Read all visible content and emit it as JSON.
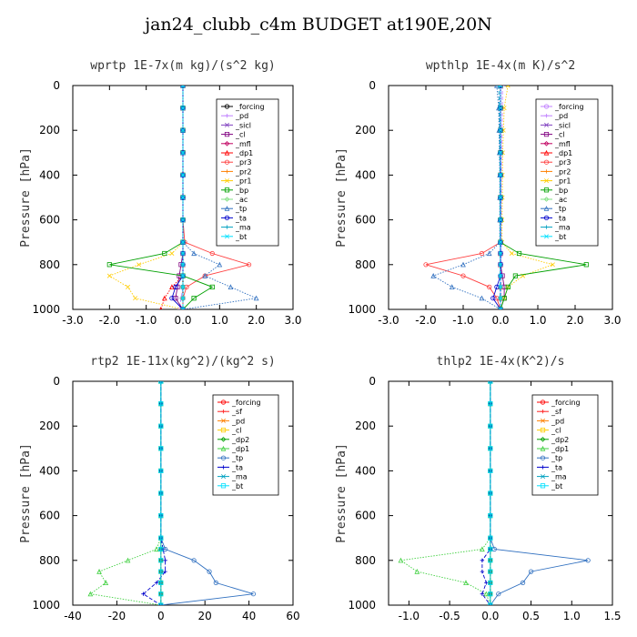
{
  "title": "jan24_clubb_c4m  BUDGET at190E,20N",
  "chart_data": [
    {
      "type": "line",
      "title": "wprtp  1E-7x(m kg)/(s^2 kg)",
      "ylabel": "Pressure [hPa]",
      "xlim": [
        -3.0,
        3.0
      ],
      "ylim": [
        1000,
        0
      ],
      "xticks": [
        "-3.0",
        "-2.0",
        "-1.0",
        "0.0",
        "1.0",
        "2.0",
        "3.0"
      ],
      "yticks": [
        "0",
        "200",
        "400",
        "600",
        "800",
        "1000"
      ],
      "legend_position": "top-right",
      "y": [
        0,
        100,
        200,
        300,
        400,
        500,
        600,
        700,
        750,
        800,
        850,
        900,
        950,
        1000
      ],
      "series": [
        {
          "name": "_forcing",
          "color": "#000000",
          "values": [
            0,
            0,
            0,
            0,
            0,
            0,
            0,
            0,
            0,
            0,
            0,
            0,
            0,
            0
          ]
        },
        {
          "name": "_pd",
          "color": "#c080ff",
          "values": [
            0,
            0,
            0,
            0,
            0,
            0,
            0,
            0,
            0,
            0,
            0,
            0,
            -0.05,
            -0.1
          ]
        },
        {
          "name": "_sicl",
          "color": "#8040c0",
          "values": [
            0,
            0,
            0,
            0,
            0,
            0,
            0,
            0,
            0,
            0,
            0,
            0,
            0,
            0
          ]
        },
        {
          "name": "_cl",
          "color": "#800080",
          "values": [
            0,
            0,
            0,
            0,
            0,
            0,
            0,
            0,
            0,
            -0.05,
            -0.1,
            -0.15,
            -0.2,
            0
          ]
        },
        {
          "name": "_mfl",
          "color": "#c00060",
          "values": [
            0,
            0,
            0,
            0,
            0,
            0,
            0,
            0,
            0,
            0,
            0,
            0,
            0,
            0
          ]
        },
        {
          "name": "_dp1",
          "color": "#ff0000",
          "values": [
            0,
            0,
            0,
            0,
            0,
            0,
            0,
            0,
            0,
            0,
            0,
            -0.3,
            -0.5,
            -0.6
          ]
        },
        {
          "name": "_pr3",
          "color": "#ff4040",
          "values": [
            0,
            0,
            0,
            0,
            0,
            0,
            0,
            0.05,
            0.8,
            1.8,
            0.6,
            0.1,
            0,
            0
          ]
        },
        {
          "name": "_pr2",
          "color": "#ff8000",
          "values": [
            0,
            0,
            0,
            0,
            0,
            0,
            0,
            0,
            0,
            0,
            0,
            0,
            0,
            0
          ]
        },
        {
          "name": "_pr1",
          "color": "#ffcc00",
          "values": [
            0,
            0,
            0,
            0,
            0,
            0,
            0,
            0,
            -0.3,
            -1.2,
            -2.0,
            -1.5,
            -1.3,
            0
          ]
        },
        {
          "name": "_bp",
          "color": "#00a000",
          "values": [
            0,
            0,
            0,
            0,
            0,
            0,
            0,
            0,
            -0.5,
            -2.0,
            0,
            0.8,
            0.3,
            0
          ]
        },
        {
          "name": "_ac",
          "color": "#80e080",
          "values": [
            0,
            0,
            0,
            0,
            0,
            0,
            0,
            0,
            0,
            0,
            0,
            0,
            0,
            0
          ]
        },
        {
          "name": "_tp",
          "color": "#3070c0",
          "values": [
            0,
            0,
            0,
            0,
            0,
            0,
            0,
            0,
            0.3,
            1.0,
            0.6,
            1.3,
            2.0,
            0
          ]
        },
        {
          "name": "_ta",
          "color": "#0000cc",
          "values": [
            0,
            0,
            0,
            0,
            0,
            0,
            0,
            0,
            0,
            0,
            0,
            -0.2,
            -0.3,
            0
          ]
        },
        {
          "name": "_ma",
          "color": "#00a0c0",
          "values": [
            0,
            0,
            0,
            0,
            0,
            0,
            0,
            0,
            0,
            0,
            0,
            0,
            0,
            0
          ]
        },
        {
          "name": "_bt",
          "color": "#00e0ff",
          "values": [
            0,
            0,
            0,
            0,
            0,
            0,
            0,
            0,
            0,
            0,
            0,
            0,
            0,
            0
          ]
        }
      ]
    },
    {
      "type": "line",
      "title": "wpthlp  1E-4x(m K)/s^2",
      "ylabel": "Pressure [hPa]",
      "xlim": [
        -3.0,
        3.0
      ],
      "ylim": [
        1000,
        0
      ],
      "xticks": [
        "-3.0",
        "-2.0",
        "-1.0",
        "0.0",
        "1.0",
        "2.0",
        "3.0"
      ],
      "yticks": [
        "0",
        "200",
        "400",
        "600",
        "800",
        "1000"
      ],
      "legend_position": "top-right",
      "y": [
        0,
        100,
        200,
        300,
        400,
        500,
        600,
        700,
        750,
        800,
        850,
        900,
        950,
        1000
      ],
      "series": [
        {
          "name": "_forcing",
          "color": "#c080ff",
          "values": [
            0,
            0,
            0,
            0,
            0,
            0,
            0,
            0,
            0,
            0,
            0,
            0,
            0,
            0
          ]
        },
        {
          "name": "_pd",
          "color": "#c080ff",
          "values": [
            0.05,
            0.05,
            0.04,
            0.03,
            0.02,
            0.02,
            0.02,
            0.02,
            0.02,
            0.02,
            0.02,
            0.02,
            0.02,
            0
          ]
        },
        {
          "name": "_sicl",
          "color": "#8040c0",
          "values": [
            0,
            0,
            0,
            0,
            0,
            0,
            0,
            0,
            0,
            0,
            0,
            0,
            0,
            0
          ]
        },
        {
          "name": "_cl",
          "color": "#800080",
          "values": [
            0,
            0,
            0,
            0,
            0,
            0,
            0,
            0,
            0,
            0,
            0.05,
            0.1,
            0.1,
            0
          ]
        },
        {
          "name": "_mfl",
          "color": "#c00060",
          "values": [
            0,
            0,
            0,
            0,
            0,
            0,
            0,
            0,
            0,
            0,
            0,
            0,
            0,
            0
          ]
        },
        {
          "name": "_dp1",
          "color": "#ff0000",
          "values": [
            0,
            0,
            0,
            0,
            0,
            0,
            0,
            0,
            0,
            0,
            0,
            0,
            0,
            0
          ]
        },
        {
          "name": "_pr3",
          "color": "#ff4040",
          "values": [
            0,
            0,
            0,
            0,
            0,
            0,
            0,
            0,
            -0.5,
            -2.0,
            -1.0,
            -0.3,
            -0.1,
            0
          ]
        },
        {
          "name": "_pr2",
          "color": "#ff8000",
          "values": [
            0,
            0,
            0,
            0,
            0,
            0,
            0,
            0,
            0,
            0,
            0,
            0,
            0,
            0
          ]
        },
        {
          "name": "_pr1",
          "color": "#ffcc00",
          "values": [
            0.2,
            0.1,
            0.08,
            0.06,
            0.05,
            0.05,
            0.04,
            0.04,
            0.3,
            1.4,
            0.6,
            0.2,
            0.1,
            0
          ]
        },
        {
          "name": "_bp",
          "color": "#00a000",
          "values": [
            0,
            0,
            0,
            0,
            0,
            0,
            0,
            0,
            0.5,
            2.3,
            0.4,
            0.2,
            0.1,
            0
          ]
        },
        {
          "name": "_ac",
          "color": "#80e080",
          "values": [
            0,
            0,
            0,
            0,
            0,
            0,
            0,
            0,
            0,
            0,
            0,
            0,
            0,
            0
          ]
        },
        {
          "name": "_tp",
          "color": "#3070c0",
          "values": [
            -0.1,
            -0.05,
            -0.04,
            -0.03,
            -0.02,
            -0.02,
            -0.02,
            -0.02,
            -0.3,
            -1.0,
            -1.8,
            -1.3,
            -0.5,
            0
          ]
        },
        {
          "name": "_ta",
          "color": "#0000cc",
          "values": [
            0,
            0,
            0,
            0,
            0,
            0,
            0,
            0,
            0,
            0,
            0,
            -0.1,
            -0.2,
            0
          ]
        },
        {
          "name": "_ma",
          "color": "#00a0c0",
          "values": [
            -0.05,
            -0.03,
            -0.02,
            -0.02,
            -0.01,
            -0.01,
            -0.01,
            -0.01,
            -0.01,
            -0.01,
            -0.01,
            -0.01,
            -0.01,
            0
          ]
        },
        {
          "name": "_bt",
          "color": "#00e0ff",
          "values": [
            0,
            0,
            0,
            0,
            0,
            0,
            0,
            0,
            0,
            0,
            0,
            0,
            0,
            0
          ]
        }
      ]
    },
    {
      "type": "line",
      "title": "rtp2  1E-11x(kg^2)/(kg^2 s)",
      "ylabel": "Pressure [hPa]",
      "xlim": [
        -40,
        60
      ],
      "ylim": [
        1000,
        0
      ],
      "xticks": [
        "-40",
        "-20",
        "0",
        "20",
        "40",
        "60"
      ],
      "yticks": [
        "0",
        "200",
        "400",
        "600",
        "800",
        "1000"
      ],
      "legend_position": "top-right",
      "y": [
        0,
        100,
        200,
        300,
        400,
        500,
        600,
        700,
        750,
        800,
        850,
        900,
        950,
        1000
      ],
      "series": [
        {
          "name": "_forcing",
          "color": "#ff0000",
          "values": [
            0,
            0,
            0,
            0,
            0,
            0,
            0,
            0,
            0,
            0,
            0,
            0,
            0,
            0
          ]
        },
        {
          "name": "_sf",
          "color": "#ff2020",
          "values": [
            0,
            0,
            0,
            0,
            0,
            0,
            0,
            0,
            0,
            0,
            0,
            0,
            0,
            0
          ]
        },
        {
          "name": "_pd",
          "color": "#ff8000",
          "values": [
            0,
            0,
            0,
            0,
            0,
            0,
            0,
            0,
            0,
            0,
            0,
            0,
            0,
            0
          ]
        },
        {
          "name": "_cl",
          "color": "#ffcc00",
          "values": [
            0,
            0,
            0,
            0,
            0,
            0,
            0,
            0,
            0,
            0,
            0,
            0,
            0,
            0
          ]
        },
        {
          "name": "_dp2",
          "color": "#00a000",
          "values": [
            0,
            0,
            0,
            0,
            0,
            0,
            0,
            0,
            0,
            0,
            0,
            0,
            0,
            0
          ]
        },
        {
          "name": "_dp1",
          "color": "#40d040",
          "values": [
            0,
            0,
            0,
            0,
            0,
            0,
            0,
            0,
            -2,
            -15,
            -28,
            -25,
            -32,
            0
          ]
        },
        {
          "name": "_tp",
          "color": "#3070c0",
          "values": [
            0,
            0,
            0,
            0,
            0,
            0,
            0,
            0,
            2,
            15,
            22,
            25,
            42,
            0
          ]
        },
        {
          "name": "_ta",
          "color": "#0000cc",
          "values": [
            0,
            0,
            0,
            0,
            0,
            0,
            0,
            0,
            1,
            2,
            2,
            -2,
            -8,
            0
          ]
        },
        {
          "name": "_ma",
          "color": "#00a0c0",
          "values": [
            0,
            0,
            0,
            0,
            0,
            0,
            0,
            0,
            0,
            0,
            0,
            0,
            0,
            0
          ]
        },
        {
          "name": "_bt",
          "color": "#00e0ff",
          "values": [
            0,
            0,
            0,
            0,
            0,
            0,
            0,
            0,
            0,
            0,
            0,
            0,
            0,
            0
          ]
        }
      ]
    },
    {
      "type": "line",
      "title": "thlp2  1E-4x(K^2)/s",
      "ylabel": "Pressure [hPa]",
      "xlim": [
        -1.25,
        1.5
      ],
      "ylim": [
        1000,
        0
      ],
      "xticks": [
        "-1.0",
        "-0.5",
        "0.0",
        "0.5",
        "1.0",
        "1.5"
      ],
      "yticks": [
        "0",
        "200",
        "400",
        "600",
        "800",
        "1000"
      ],
      "legend_position": "top-right",
      "y": [
        0,
        100,
        200,
        300,
        400,
        500,
        600,
        700,
        750,
        800,
        850,
        900,
        950,
        1000
      ],
      "series": [
        {
          "name": "_forcing",
          "color": "#ff0000",
          "values": [
            0,
            0,
            0,
            0,
            0,
            0,
            0,
            0,
            0,
            0,
            0,
            0,
            0,
            0
          ]
        },
        {
          "name": "_sf",
          "color": "#ff2020",
          "values": [
            0,
            0,
            0,
            0,
            0,
            0,
            0,
            0,
            0,
            0,
            0,
            0,
            0,
            0
          ]
        },
        {
          "name": "_pd",
          "color": "#ff8000",
          "values": [
            0,
            0,
            0,
            0,
            0,
            0,
            0,
            0,
            0,
            0,
            0,
            0,
            0,
            0
          ]
        },
        {
          "name": "_cl",
          "color": "#ffcc00",
          "values": [
            0,
            0,
            0,
            0,
            0,
            0,
            0,
            0,
            0,
            0,
            0,
            0,
            0,
            0
          ]
        },
        {
          "name": "_dp2",
          "color": "#00a000",
          "values": [
            0,
            0,
            0,
            0,
            0,
            0,
            0,
            0,
            0,
            0,
            0,
            0,
            0,
            0
          ]
        },
        {
          "name": "_dp1",
          "color": "#40d040",
          "values": [
            0,
            0,
            0,
            0,
            0,
            0,
            0,
            0,
            -0.1,
            -1.1,
            -0.9,
            -0.3,
            -0.05,
            0
          ]
        },
        {
          "name": "_tp",
          "color": "#3070c0",
          "values": [
            0,
            0,
            0,
            0,
            0,
            0,
            0,
            0,
            0.05,
            1.2,
            0.5,
            0.4,
            0.1,
            0
          ]
        },
        {
          "name": "_ta",
          "color": "#0000cc",
          "values": [
            0,
            0,
            0,
            0,
            0,
            0,
            0,
            0,
            0,
            -0.1,
            -0.1,
            -0.05,
            -0.1,
            0
          ]
        },
        {
          "name": "_ma",
          "color": "#00a0c0",
          "values": [
            0,
            0,
            0,
            0,
            0,
            0,
            0,
            0,
            0,
            0,
            0,
            0,
            0,
            0
          ]
        },
        {
          "name": "_bt",
          "color": "#00e0ff",
          "values": [
            0,
            0,
            0,
            0,
            0,
            0,
            0,
            0,
            0,
            0,
            0,
            0,
            0,
            0
          ]
        }
      ]
    }
  ]
}
